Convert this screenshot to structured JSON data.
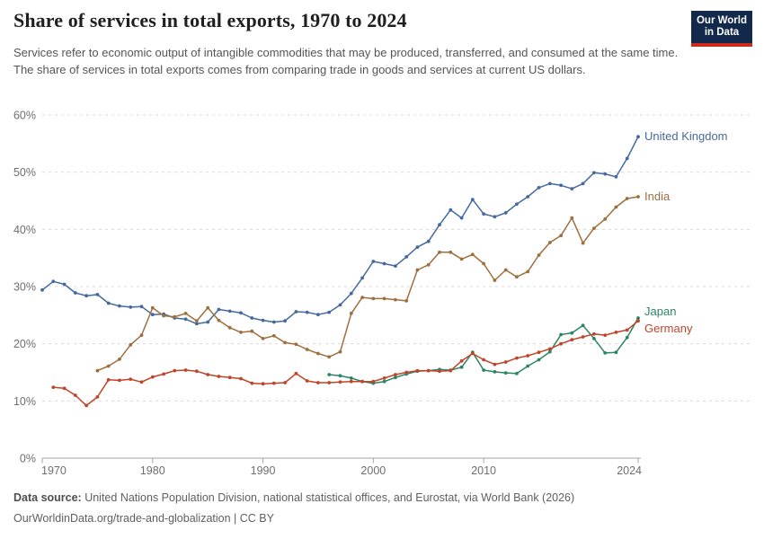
{
  "header": {
    "title": "Share of services in total exports, 1970 to 2024",
    "subtitle": "Services refer to economic output of intangible commodities that may be produced, transferred, and consumed at the same time. The share of services in total exports comes from comparing trade in goods and services at current US dollars.",
    "logo": {
      "line1": "Our World",
      "line2": "in Data",
      "bg_color": "#12294b",
      "accent_color": "#cc2a1d"
    }
  },
  "footer": {
    "datasource_label": "Data source:",
    "datasource_text": " United Nations Population Division, national statistical offices, and Eurostat, via World Bank (2026)",
    "url": "OurWorldinData.org/trade-and-globalization",
    "separator": " | ",
    "license": "CC BY"
  },
  "chart_data": {
    "type": "line",
    "title": "Share of services in total exports, 1970 to 2024",
    "xlabel": "",
    "ylabel": "",
    "x_axis": {
      "range": [
        1970,
        2024
      ],
      "ticks": [
        1970,
        1980,
        1990,
        2000,
        2010,
        2024
      ]
    },
    "y_axis": {
      "range": [
        0,
        60
      ],
      "ticks": [
        0,
        10,
        20,
        30,
        40,
        50,
        60
      ],
      "tick_suffix": "%",
      "grid": true,
      "grid_style": "dashed"
    },
    "legend_position": "end-of-line-labels",
    "series": [
      {
        "name": "United Kingdom",
        "color": "#45699f",
        "start_year": 1970,
        "label_dy": 0,
        "values": [
          29.4,
          30.9,
          30.4,
          28.9,
          28.4,
          28.6,
          27.1,
          26.6,
          26.4,
          26.5,
          25.1,
          25.2,
          24.5,
          24.3,
          23.5,
          23.8,
          26.0,
          25.7,
          25.4,
          24.5,
          24.1,
          23.8,
          24.0,
          25.6,
          25.5,
          25.1,
          25.5,
          26.8,
          28.8,
          31.5,
          34.4,
          34.0,
          33.6,
          35.2,
          36.9,
          37.9,
          40.8,
          43.4,
          42.0,
          45.2,
          42.7,
          42.2,
          42.9,
          44.4,
          45.7,
          47.3,
          48.0,
          47.7,
          47.1,
          48.0,
          49.9,
          49.7,
          49.2,
          52.4,
          56.2
        ]
      },
      {
        "name": "India",
        "color": "#9e6f3d",
        "start_year": 1975,
        "label_dy": 0,
        "values": [
          15.3,
          16.1,
          17.3,
          19.8,
          21.5,
          26.3,
          24.9,
          24.7,
          25.3,
          24.0,
          26.3,
          24.1,
          22.8,
          22.0,
          22.2,
          20.9,
          21.4,
          20.2,
          19.9,
          19.0,
          18.3,
          17.7,
          18.6,
          25.3,
          28.1,
          27.9,
          27.9,
          27.7,
          27.5,
          32.9,
          33.8,
          36.0,
          36.0,
          34.8,
          35.6,
          34.0,
          31.1,
          32.9,
          31.7,
          32.6,
          35.5,
          37.7,
          38.9,
          42.0,
          37.6,
          40.2,
          41.8,
          43.9,
          45.4,
          45.7
        ]
      },
      {
        "name": "Japan",
        "color": "#2c8465",
        "start_year": 1996,
        "label_dy": -7,
        "values": [
          14.6,
          14.4,
          14.0,
          13.4,
          13.1,
          13.4,
          14.1,
          14.7,
          15.2,
          15.3,
          15.5,
          15.4,
          15.9,
          18.5,
          15.4,
          15.1,
          14.9,
          14.8,
          16.1,
          17.2,
          18.6,
          21.6,
          21.9,
          23.2,
          20.9,
          18.4,
          18.5,
          21.1,
          24.5
        ]
      },
      {
        "name": "Germany",
        "color": "#c0442a",
        "start_year": 1971,
        "label_dy": 9,
        "values": [
          12.4,
          12.2,
          11.0,
          9.2,
          10.7,
          13.7,
          13.6,
          13.8,
          13.3,
          14.2,
          14.7,
          15.3,
          15.4,
          15.2,
          14.6,
          14.3,
          14.1,
          13.9,
          13.1,
          13.0,
          13.1,
          13.2,
          14.8,
          13.5,
          13.2,
          13.2,
          13.3,
          13.4,
          13.4,
          13.4,
          14.0,
          14.6,
          15.0,
          15.3,
          15.3,
          15.2,
          15.3,
          17.0,
          18.3,
          17.2,
          16.4,
          16.8,
          17.5,
          17.9,
          18.5,
          19.1,
          20.0,
          20.7,
          21.2,
          21.7,
          21.5,
          22.0,
          22.4,
          24.0
        ]
      }
    ]
  }
}
